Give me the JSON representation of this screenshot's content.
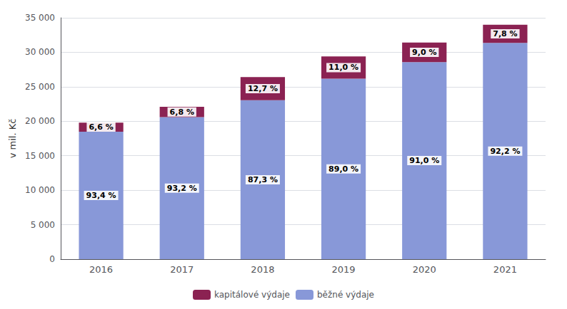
{
  "chart_data": {
    "type": "bar",
    "stacked": true,
    "categories": [
      "2016",
      "2017",
      "2018",
      "2019",
      "2020",
      "2021"
    ],
    "ylabel": "v mil. Kč",
    "ylim": [
      0,
      35000
    ],
    "yticks": [
      0,
      {
        "value": 5000,
        "label": "5 000"
      },
      {
        "value": 10000,
        "label": "10 000"
      },
      {
        "value": 15000,
        "label": "15 000"
      },
      {
        "value": 20000,
        "label": "20 000"
      },
      {
        "value": 25000,
        "label": "25 000"
      },
      {
        "value": 30000,
        "label": "30 000"
      },
      {
        "value": 35000,
        "label": "35 000"
      }
    ],
    "grid": true,
    "legend": "bottom",
    "series": [
      {
        "name": "běžné výdaje",
        "color": "#8898D8",
        "values": [
          18493,
          20597,
          23047,
          26166,
          28574,
          31348
        ],
        "labels": [
          "93,4 %",
          "93,2 %",
          "87,3 %",
          "89,0 %",
          "91,0 %",
          "92,2 %"
        ]
      },
      {
        "name": "kapitálové výdaje",
        "color": "#8B2252",
        "values": [
          1307,
          1503,
          3353,
          3234,
          2826,
          2652
        ],
        "labels": [
          "6,6 %",
          "6,8 %",
          "12,7 %",
          "11,0 %",
          "9,0 %",
          "7,8 %"
        ]
      }
    ]
  }
}
